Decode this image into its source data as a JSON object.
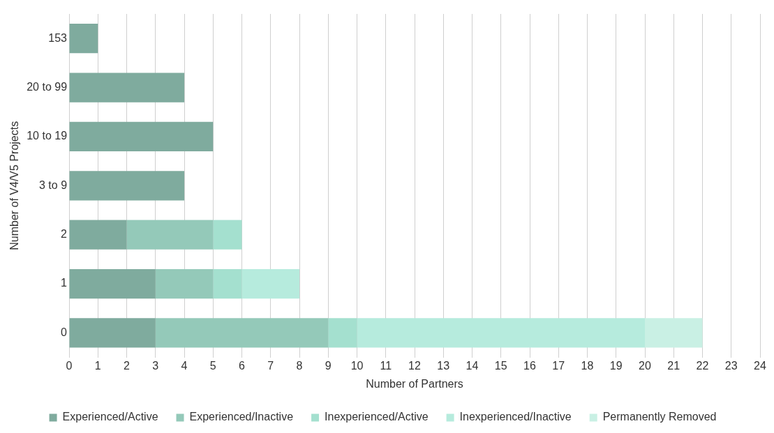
{
  "chart_data": {
    "type": "bar",
    "orientation": "horizontal",
    "stacked": true,
    "xlabel": "Number of Partners",
    "ylabel": "Number of V4/V5 Projects",
    "categories": [
      "153",
      "20 to 99",
      "10 to 19",
      "3 to 9",
      "2",
      "1",
      "0"
    ],
    "series": [
      {
        "name": "Experienced/Active",
        "color": "#7fab9e",
        "values": [
          1,
          4,
          5,
          4,
          2,
          3,
          3
        ]
      },
      {
        "name": "Experienced/Inactive",
        "color": "#94c9b9",
        "values": [
          0,
          0,
          0,
          0,
          3,
          2,
          6
        ]
      },
      {
        "name": "Inexperienced/Active",
        "color": "#a4e0cf",
        "values": [
          0,
          0,
          0,
          0,
          1,
          1,
          1
        ]
      },
      {
        "name": "Inexperienced/Inactive",
        "color": "#b6ebdd",
        "values": [
          0,
          0,
          0,
          0,
          0,
          2,
          10
        ]
      },
      {
        "name": "Permanently Removed",
        "color": "#c9f0e4",
        "values": [
          0,
          0,
          0,
          0,
          0,
          0,
          2
        ]
      }
    ],
    "xlim": [
      0,
      24
    ],
    "xticks": [
      0,
      1,
      2,
      3,
      4,
      5,
      6,
      7,
      8,
      9,
      10,
      11,
      12,
      13,
      14,
      15,
      16,
      17,
      18,
      19,
      20,
      21,
      22,
      23,
      24
    ],
    "grid": "x",
    "legend": "bottom"
  }
}
